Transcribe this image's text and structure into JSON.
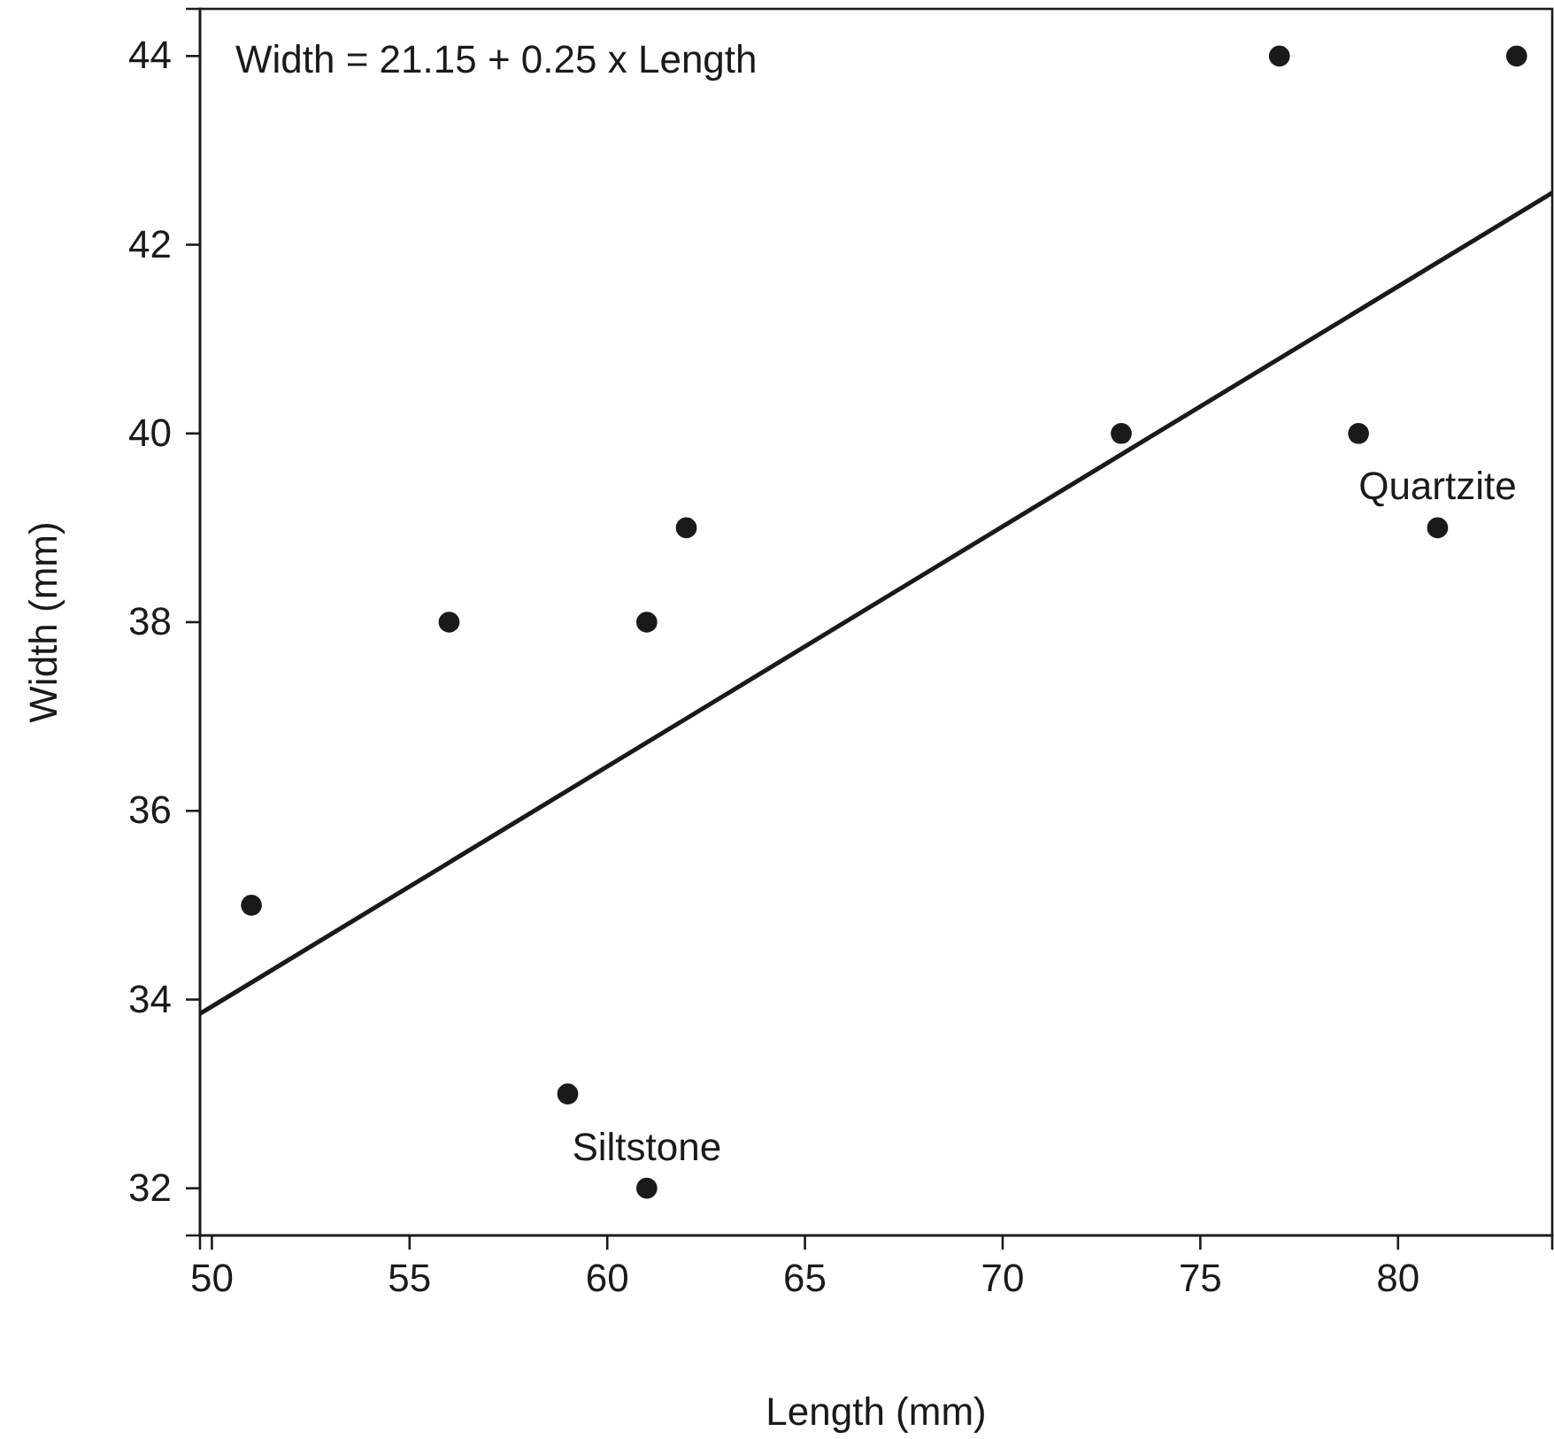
{
  "chart_data": {
    "type": "scatter",
    "xlabel": "Length (mm)",
    "ylabel": "Width (mm)",
    "xlim": [
      49.7,
      83.9
    ],
    "ylim": [
      31.5,
      44.5
    ],
    "xticks": [
      50,
      55,
      60,
      65,
      70,
      75,
      80
    ],
    "yticks": [
      32,
      34,
      36,
      38,
      40,
      42,
      44
    ],
    "grid": false,
    "series": [
      {
        "marker": "circle",
        "color": "#1a1a1a",
        "x": [
          51,
          56,
          59,
          61,
          61,
          62,
          73,
          77,
          79,
          81,
          83
        ],
        "values": [
          35,
          38,
          33,
          38,
          32,
          39,
          40,
          44,
          40,
          39,
          44
        ]
      },
      {
        "type": "line",
        "color": "#1a1a1a",
        "line_style": "solid",
        "x": [
          49.7,
          83.9
        ],
        "values": [
          33.85,
          42.55
        ]
      }
    ],
    "annotations": [
      "Width = 21.15 + 0.25 x Length",
      {
        "text": "Quartzite",
        "x": 81,
        "y": 39
      },
      {
        "text": "Siltstone",
        "x": 61,
        "y": 32
      }
    ]
  }
}
